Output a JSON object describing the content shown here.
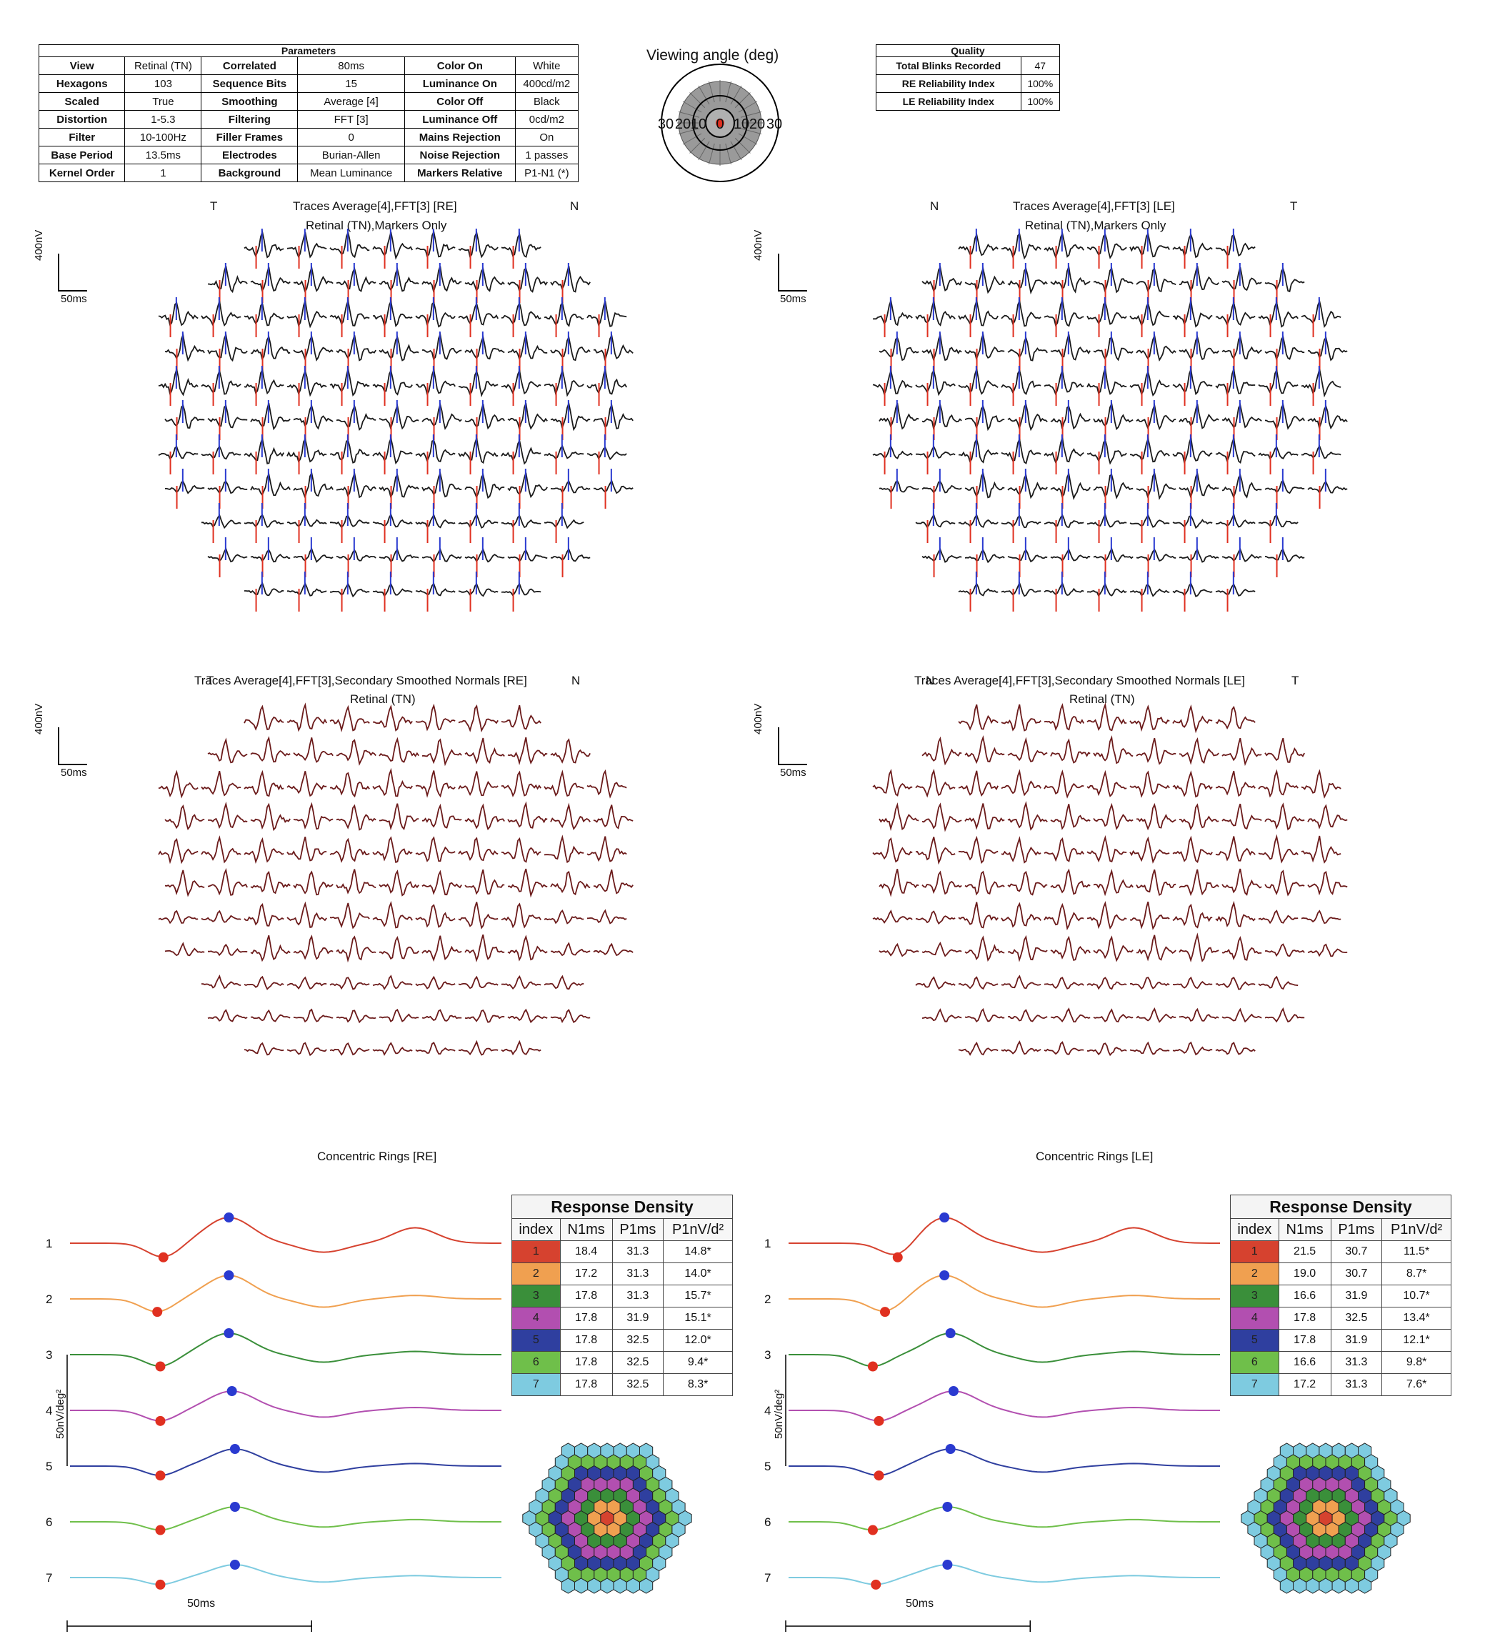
{
  "parameters": {
    "title": "Parameters",
    "rows": [
      [
        "View",
        "Retinal (TN)",
        "Correlated",
        "80ms",
        "Color On",
        "White"
      ],
      [
        "Hexagons",
        "103",
        "Sequence Bits",
        "15",
        "Luminance On",
        "400cd/m2"
      ],
      [
        "Scaled",
        "True",
        "Smoothing",
        "Average [4]",
        "Color Off",
        "Black"
      ],
      [
        "Distortion",
        "1-5.3",
        "Filtering",
        "FFT [3]",
        "Luminance Off",
        "0cd/m2"
      ],
      [
        "Filter",
        "10-100Hz",
        "Filler Frames",
        "0",
        "Mains Rejection",
        "On"
      ],
      [
        "Base Period",
        "13.5ms",
        "Electrodes",
        "Burian-Allen",
        "Noise Rejection",
        "1 passes"
      ],
      [
        "Kernel Order",
        "1",
        "Background",
        "Mean Luminance",
        "Markers Relative",
        "P1-N1 (*)"
      ]
    ]
  },
  "viewing_angle": {
    "title": "Viewing angle (deg)",
    "ticks": [
      "30",
      "20",
      "10",
      "0",
      "10",
      "20",
      "30"
    ]
  },
  "quality": {
    "title": "Quality",
    "rows": [
      [
        "Total Blinks Recorded",
        "47"
      ],
      [
        "RE Reliability Index",
        "100%"
      ],
      [
        "LE Reliability Index",
        "100%"
      ]
    ]
  },
  "panels": {
    "re_traces": {
      "title": "Traces Average[4],FFT[3] [RE]",
      "subtitle": "Retinal (TN),Markers Only",
      "left": "T",
      "right": "N"
    },
    "le_traces": {
      "title": "Traces Average[4],FFT[3] [LE]",
      "subtitle": "Retinal (TN),Markers Only",
      "left": "N",
      "right": "T"
    },
    "re_normals": {
      "title": "Traces Average[4],FFT[3],Secondary Smoothed Normals [RE]",
      "subtitle": "Retinal (TN)",
      "overlay_left": "T",
      "overlay_right": "N"
    },
    "le_normals": {
      "title": "Traces Average[4],FFT[3],Secondary Smoothed Normals [LE]",
      "subtitle": "Retinal (TN)",
      "overlay_left": "N",
      "overlay_right": "T"
    },
    "scale": {
      "y": "400nV",
      "x": "50ms"
    },
    "re_rings": {
      "title": "Concentric Rings [RE]"
    },
    "le_rings": {
      "title": "Concentric Rings [LE]"
    },
    "rings_scale": {
      "y": "50nV/deg²",
      "x": "50ms"
    }
  },
  "colors": {
    "ring1": "#d6422f",
    "ring2": "#f0a050",
    "ring3": "#3a8f3a",
    "ring4": "#b24fb0",
    "ring5": "#2f3f9f",
    "ring6": "#6fbf4a",
    "ring7": "#7ecbe0",
    "trace": "#1a1a1a",
    "normal": "#6b1a1a",
    "marker_n1": "#e03020",
    "marker_p1": "#2a3ad0"
  },
  "chart_data": [
    {
      "type": "table",
      "title": "Response Density",
      "eye": "RE",
      "columns": [
        "index",
        "N1ms",
        "P1ms",
        "P1nV/d²"
      ],
      "rows": [
        [
          "1",
          "18.4",
          "31.3",
          "14.8*"
        ],
        [
          "2",
          "17.2",
          "31.3",
          "14.0*"
        ],
        [
          "3",
          "17.8",
          "31.3",
          "15.7*"
        ],
        [
          "4",
          "17.8",
          "31.9",
          "15.1*"
        ],
        [
          "5",
          "17.8",
          "32.5",
          "12.0*"
        ],
        [
          "6",
          "17.8",
          "32.5",
          "9.4*"
        ],
        [
          "7",
          "17.8",
          "32.5",
          "8.3*"
        ]
      ]
    },
    {
      "type": "table",
      "title": "Response Density",
      "eye": "LE",
      "columns": [
        "index",
        "N1ms",
        "P1ms",
        "P1nV/d²"
      ],
      "rows": [
        [
          "1",
          "21.5",
          "30.7",
          "11.5*"
        ],
        [
          "2",
          "19.0",
          "30.7",
          "8.7*"
        ],
        [
          "3",
          "16.6",
          "31.9",
          "10.7*"
        ],
        [
          "4",
          "17.8",
          "32.5",
          "13.4*"
        ],
        [
          "5",
          "17.8",
          "31.9",
          "12.1*"
        ],
        [
          "6",
          "16.6",
          "31.3",
          "9.8*"
        ],
        [
          "7",
          "17.2",
          "31.3",
          "7.6*"
        ]
      ]
    },
    {
      "type": "line",
      "title": "Concentric Rings [RE]",
      "xlabel": "50ms",
      "ylabel": "50nV/deg²",
      "series": [
        {
          "name": "1",
          "n1_ms": 18.4,
          "p1_ms": 31.3
        },
        {
          "name": "2",
          "n1_ms": 17.2,
          "p1_ms": 31.3
        },
        {
          "name": "3",
          "n1_ms": 17.8,
          "p1_ms": 31.3
        },
        {
          "name": "4",
          "n1_ms": 17.8,
          "p1_ms": 31.9
        },
        {
          "name": "5",
          "n1_ms": 17.8,
          "p1_ms": 32.5
        },
        {
          "name": "6",
          "n1_ms": 17.8,
          "p1_ms": 32.5
        },
        {
          "name": "7",
          "n1_ms": 17.8,
          "p1_ms": 32.5
        }
      ]
    },
    {
      "type": "line",
      "title": "Concentric Rings [LE]",
      "xlabel": "50ms",
      "ylabel": "50nV/deg²",
      "series": [
        {
          "name": "1",
          "n1_ms": 21.5,
          "p1_ms": 30.7
        },
        {
          "name": "2",
          "n1_ms": 19.0,
          "p1_ms": 30.7
        },
        {
          "name": "3",
          "n1_ms": 16.6,
          "p1_ms": 31.9
        },
        {
          "name": "4",
          "n1_ms": 17.8,
          "p1_ms": 32.5
        },
        {
          "name": "5",
          "n1_ms": 17.8,
          "p1_ms": 31.9
        },
        {
          "name": "6",
          "n1_ms": 16.6,
          "p1_ms": 31.3
        },
        {
          "name": "7",
          "n1_ms": 17.2,
          "p1_ms": 31.3
        }
      ]
    }
  ]
}
